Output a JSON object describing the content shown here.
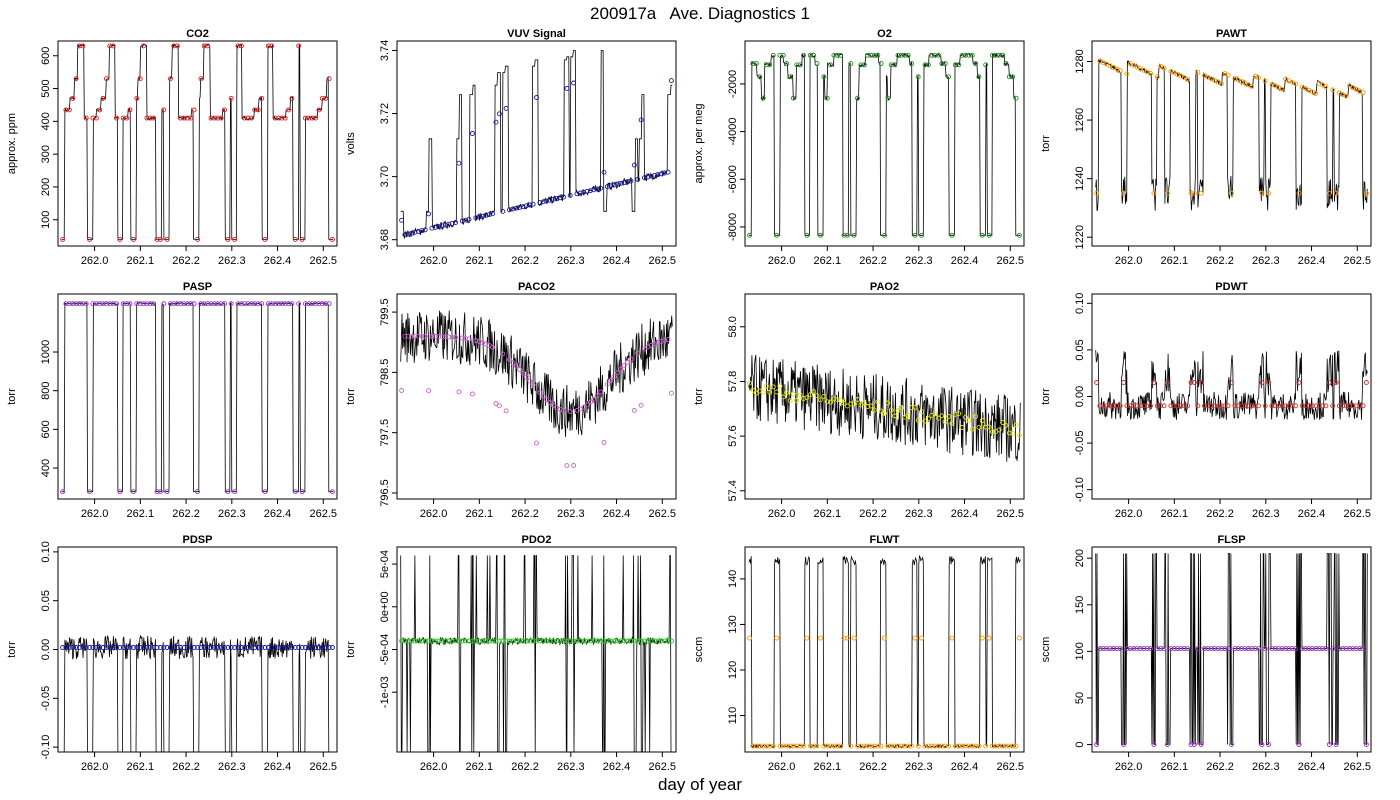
{
  "figure": {
    "title": "200917a   Ave. Diagnostics 1",
    "xlabel": "day of year"
  },
  "chart_data": [
    {
      "type": "line",
      "title": "CO2",
      "ylabel": "approx. ppm",
      "xlim": [
        261.92,
        262.53
      ],
      "ylim": [
        20,
        645
      ],
      "yticks": [
        100,
        200,
        300,
        400,
        500,
        600
      ],
      "ytick_labels": [
        "100",
        "200",
        "300",
        "400",
        "500",
        "600"
      ],
      "xticks": [
        262.0,
        262.1,
        262.2,
        262.3,
        262.4,
        262.5
      ],
      "xtick_labels": [
        "262.0",
        "262.1",
        "262.2",
        "262.3",
        "262.4",
        "262.5"
      ],
      "pattern": "cycle",
      "base": 410,
      "low": 40,
      "high": [
        460,
        530,
        630,
        560
      ],
      "noise": 4,
      "marker_color": "#e41a1c"
    },
    {
      "type": "line",
      "title": "VUV Signal",
      "ylabel": "volts",
      "xlim": [
        261.92,
        262.53
      ],
      "ylim": [
        3.678,
        3.743
      ],
      "yticks": [
        3.68,
        3.7,
        3.72,
        3.74
      ],
      "ytick_labels": [
        "3.68",
        "3.70",
        "3.72",
        "3.74"
      ],
      "xticks": [
        262.0,
        262.1,
        262.2,
        262.3,
        262.4,
        262.5
      ],
      "xtick_labels": [
        "262.0",
        "262.1",
        "262.2",
        "262.3",
        "262.4",
        "262.5"
      ],
      "pattern": "drift",
      "start": 3.681,
      "end": 3.702,
      "spikes": [
        3.689,
        3.712,
        3.726,
        3.729,
        3.733,
        3.735,
        3.737,
        3.738,
        3.74
      ],
      "noise": 0.0012,
      "marker_color": "#1a1aa6"
    },
    {
      "type": "line",
      "title": "O2",
      "ylabel": "approx. per meg",
      "xlim": [
        261.92,
        262.53
      ],
      "ylim": [
        -8800,
        -200
      ],
      "yticks": [
        -8000,
        -6000,
        -4000,
        -2000
      ],
      "ytick_labels": [
        "-8000",
        "-6000",
        "-4000",
        "-2000"
      ],
      "xticks": [
        262.0,
        262.1,
        262.2,
        262.3,
        262.4,
        262.5
      ],
      "xtick_labels": [
        "262.0",
        "262.1",
        "262.2",
        "262.3",
        "262.4",
        "262.5"
      ],
      "pattern": "cycle",
      "base": -800,
      "low": -8350,
      "high": [
        -1500,
        -2600,
        -1200,
        -2000
      ],
      "noise": 80,
      "marker_color": "#1f8a1f"
    },
    {
      "type": "line",
      "title": "PAWT",
      "ylabel": "torr",
      "xlim": [
        261.92,
        262.53
      ],
      "ylim": [
        1217,
        1287
      ],
      "yticks": [
        1220,
        1240,
        1260,
        1280
      ],
      "ytick_labels": [
        "1220",
        "1240",
        "1260",
        "1280"
      ],
      "xticks": [
        262.0,
        262.1,
        262.2,
        262.3,
        262.4,
        262.5
      ],
      "xtick_labels": [
        "262.0",
        "262.1",
        "262.2",
        "262.3",
        "262.4",
        "262.5"
      ],
      "pattern": "pressure",
      "start": 1281,
      "end": 1271,
      "low": 1235,
      "noise": 0.8,
      "marker_color": "#ff9900"
    },
    {
      "type": "line",
      "title": "PASP",
      "ylabel": "torr",
      "xlim": [
        261.92,
        262.53
      ],
      "ylim": [
        240,
        1300
      ],
      "yticks": [
        400,
        600,
        800,
        1000
      ],
      "ytick_labels": [
        "400",
        "600",
        "800",
        "1000"
      ],
      "xticks": [
        262.0,
        262.1,
        262.2,
        262.3,
        262.4,
        262.5
      ],
      "xtick_labels": [
        "262.0",
        "262.1",
        "262.2",
        "262.3",
        "262.4",
        "262.5"
      ],
      "pattern": "flat",
      "base": 1250,
      "low": 278,
      "noise": 5,
      "marker_color": "#9933cc"
    },
    {
      "type": "line",
      "title": "PACO2",
      "ylabel": "torr",
      "xlim": [
        261.92,
        262.53
      ],
      "ylim": [
        796.4,
        799.8
      ],
      "yticks": [
        796.5,
        797.5,
        798.5,
        799.5
      ],
      "ytick_labels": [
        "796.5",
        "797.5",
        "798.5",
        "799.5"
      ],
      "xticks": [
        262.0,
        262.1,
        262.2,
        262.3,
        262.4,
        262.5
      ],
      "xtick_labels": [
        "262.0",
        "262.1",
        "262.2",
        "262.3",
        "262.4",
        "262.5"
      ],
      "pattern": "valley",
      "base": 799.1,
      "dip": 797.85,
      "noise": 0.45,
      "marker_color": "#cc66cc"
    },
    {
      "type": "line",
      "title": "PAO2",
      "ylabel": "torr",
      "xlim": [
        261.92,
        262.53
      ],
      "ylim": [
        57.37,
        58.12
      ],
      "yticks": [
        57.4,
        57.6,
        57.8,
        58.0
      ],
      "ytick_labels": [
        "57.4",
        "57.6",
        "57.8",
        "58.0"
      ],
      "xticks": [
        262.0,
        262.1,
        262.2,
        262.3,
        262.4,
        262.5
      ],
      "xtick_labels": [
        "262.0",
        "262.1",
        "262.2",
        "262.3",
        "262.4",
        "262.5"
      ],
      "pattern": "digital",
      "start": 57.78,
      "end": 57.62,
      "noise": 0.03,
      "marker_color": "#e6e600"
    },
    {
      "type": "line",
      "title": "PDWT",
      "ylabel": "torr",
      "xlim": [
        261.92,
        262.53
      ],
      "ylim": [
        -0.11,
        0.11
      ],
      "yticks": [
        -0.1,
        -0.05,
        0.0,
        0.05,
        0.1
      ],
      "ytick_labels": [
        "-0.10",
        "-0.05",
        "0.00",
        "0.05",
        "0.10"
      ],
      "xticks": [
        262.0,
        262.1,
        262.2,
        262.3,
        262.4,
        262.5
      ],
      "xtick_labels": [
        "262.0",
        "262.1",
        "262.2",
        "262.3",
        "262.4",
        "262.5"
      ],
      "pattern": "noise",
      "base": -0.01,
      "noise": 0.015,
      "spike": 0.05,
      "marker_color": "#cc3333"
    },
    {
      "type": "line",
      "title": "PDSP",
      "ylabel": "torr",
      "xlim": [
        261.92,
        262.53
      ],
      "ylim": [
        -0.105,
        0.105
      ],
      "yticks": [
        -0.1,
        -0.05,
        0.0,
        0.05,
        0.1
      ],
      "ytick_labels": [
        "-0.10",
        "-0.05",
        "0.00",
        "0.05",
        "0.10"
      ],
      "xticks": [
        262.0,
        262.1,
        262.2,
        262.3,
        262.4,
        262.5
      ],
      "xtick_labels": [
        "262.0",
        "262.1",
        "262.2",
        "262.3",
        "262.4",
        "262.5"
      ],
      "pattern": "noise_drop",
      "base": 0.002,
      "noise": 0.012,
      "low": -0.105,
      "marker_color": "#1a1aa6"
    },
    {
      "type": "line",
      "title": "PDO2",
      "ylabel": "torr",
      "xlim": [
        261.92,
        262.53
      ],
      "ylim": [
        -0.0017,
        0.0007
      ],
      "yticks": [
        -0.001,
        -0.0005,
        0.0,
        0.0005
      ],
      "ytick_labels": [
        "-1e-03",
        "-5e-04",
        "0e+00",
        "5e-04"
      ],
      "xticks": [
        262.0,
        262.1,
        262.2,
        262.3,
        262.4,
        262.5
      ],
      "xtick_labels": [
        "262.0",
        "262.1",
        "262.2",
        "262.3",
        "262.4",
        "262.5"
      ],
      "pattern": "bands",
      "base": -0.0004,
      "noise": 4e-05,
      "marker_color": "#22cc22"
    },
    {
      "type": "line",
      "title": "FLWT",
      "ylabel": "sccm",
      "xlim": [
        261.92,
        262.53
      ],
      "ylim": [
        102,
        147
      ],
      "yticks": [
        110,
        120,
        130,
        140
      ],
      "ytick_labels": [
        "110",
        "120",
        "130",
        "140"
      ],
      "xticks": [
        262.0,
        262.1,
        262.2,
        262.3,
        262.4,
        262.5
      ],
      "xtick_labels": [
        "262.0",
        "262.1",
        "262.2",
        "262.3",
        "262.4",
        "262.5"
      ],
      "pattern": "flow",
      "base": 103.3,
      "high": 145,
      "mid": 127,
      "noise": 0.3,
      "marker_color": "#ff9900"
    },
    {
      "type": "line",
      "title": "FLSP",
      "ylabel": "sccm",
      "xlim": [
        261.92,
        262.53
      ],
      "ylim": [
        -8,
        212
      ],
      "yticks": [
        0,
        50,
        100,
        150,
        200
      ],
      "ytick_labels": [
        "0",
        "50",
        "100",
        "150",
        "200"
      ],
      "xticks": [
        262.0,
        262.1,
        262.2,
        262.3,
        262.4,
        262.5
      ],
      "xtick_labels": [
        "262.0",
        "262.1",
        "262.2",
        "262.3",
        "262.4",
        "262.5"
      ],
      "pattern": "flow_sp",
      "base": 103,
      "high": 205,
      "low": 0,
      "noise": 0.6,
      "marker_color": "#9933cc"
    }
  ]
}
